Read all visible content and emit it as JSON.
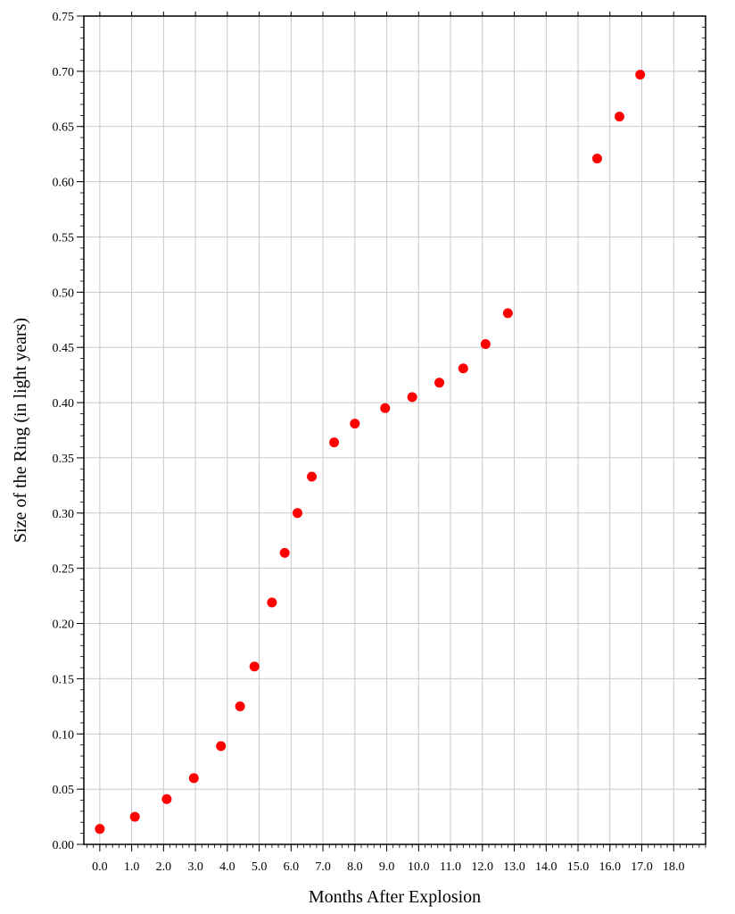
{
  "chart_data": {
    "type": "scatter",
    "title": "",
    "xlabel": "Months After Explosion",
    "ylabel": "Size of the Ring (in light years)",
    "xlim": [
      -0.5,
      19.0
    ],
    "ylim": [
      0.0,
      0.75
    ],
    "x_ticks": [
      "0.0",
      "1.0",
      "2.0",
      "3.0",
      "4.0",
      "5.0",
      "6.0",
      "7.0",
      "8.0",
      "9.0",
      "10.0",
      "11.0",
      "12.0",
      "13.0",
      "14.0",
      "15.0",
      "16.0",
      "17.0",
      "18.0"
    ],
    "y_ticks": [
      "0.00",
      "0.05",
      "0.10",
      "0.15",
      "0.20",
      "0.25",
      "0.30",
      "0.35",
      "0.40",
      "0.45",
      "0.50",
      "0.55",
      "0.60",
      "0.65",
      "0.70",
      "0.75"
    ],
    "grid": true,
    "marker_color": "#ff0000",
    "points": [
      {
        "x": 0.0,
        "y": 0.014
      },
      {
        "x": 1.1,
        "y": 0.025
      },
      {
        "x": 2.1,
        "y": 0.041
      },
      {
        "x": 2.95,
        "y": 0.06
      },
      {
        "x": 3.8,
        "y": 0.089
      },
      {
        "x": 4.4,
        "y": 0.125
      },
      {
        "x": 4.85,
        "y": 0.161
      },
      {
        "x": 5.4,
        "y": 0.219
      },
      {
        "x": 5.8,
        "y": 0.264
      },
      {
        "x": 6.2,
        "y": 0.3
      },
      {
        "x": 6.65,
        "y": 0.333
      },
      {
        "x": 7.35,
        "y": 0.364
      },
      {
        "x": 8.0,
        "y": 0.381
      },
      {
        "x": 8.95,
        "y": 0.395
      },
      {
        "x": 9.8,
        "y": 0.405
      },
      {
        "x": 10.65,
        "y": 0.418
      },
      {
        "x": 11.4,
        "y": 0.431
      },
      {
        "x": 12.1,
        "y": 0.453
      },
      {
        "x": 12.8,
        "y": 0.481
      },
      {
        "x": 15.6,
        "y": 0.621
      },
      {
        "x": 16.3,
        "y": 0.659
      },
      {
        "x": 16.95,
        "y": 0.697
      }
    ]
  }
}
